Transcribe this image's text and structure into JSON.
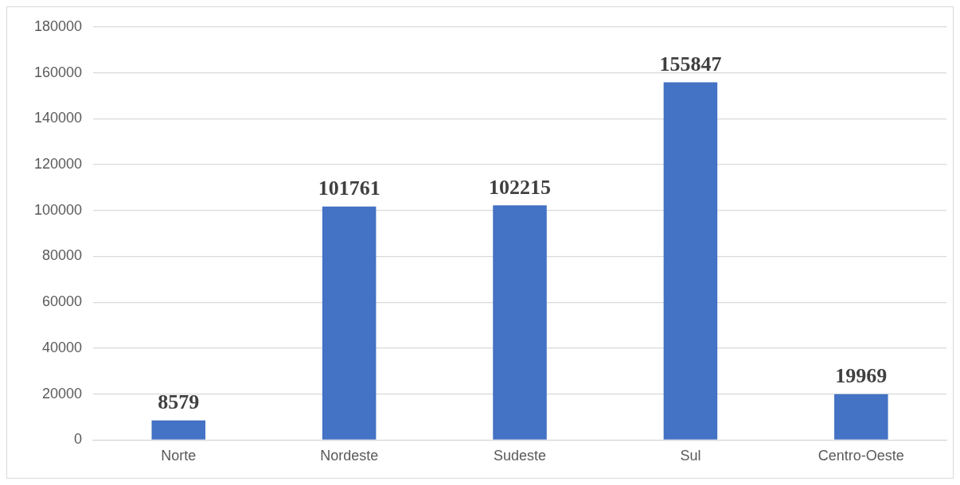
{
  "chart_data": {
    "type": "bar",
    "categories": [
      "Norte",
      "Nordeste",
      "Sudeste",
      "Sul",
      "Centro-Oeste"
    ],
    "values": [
      8579,
      101761,
      102215,
      155847,
      19969
    ],
    "color": "#4472c4",
    "ylim": [
      0,
      180000
    ],
    "yticks": [
      0,
      20000,
      40000,
      60000,
      80000,
      100000,
      120000,
      140000,
      160000,
      180000
    ],
    "grid": "y",
    "data_labels": true,
    "legend": false
  }
}
